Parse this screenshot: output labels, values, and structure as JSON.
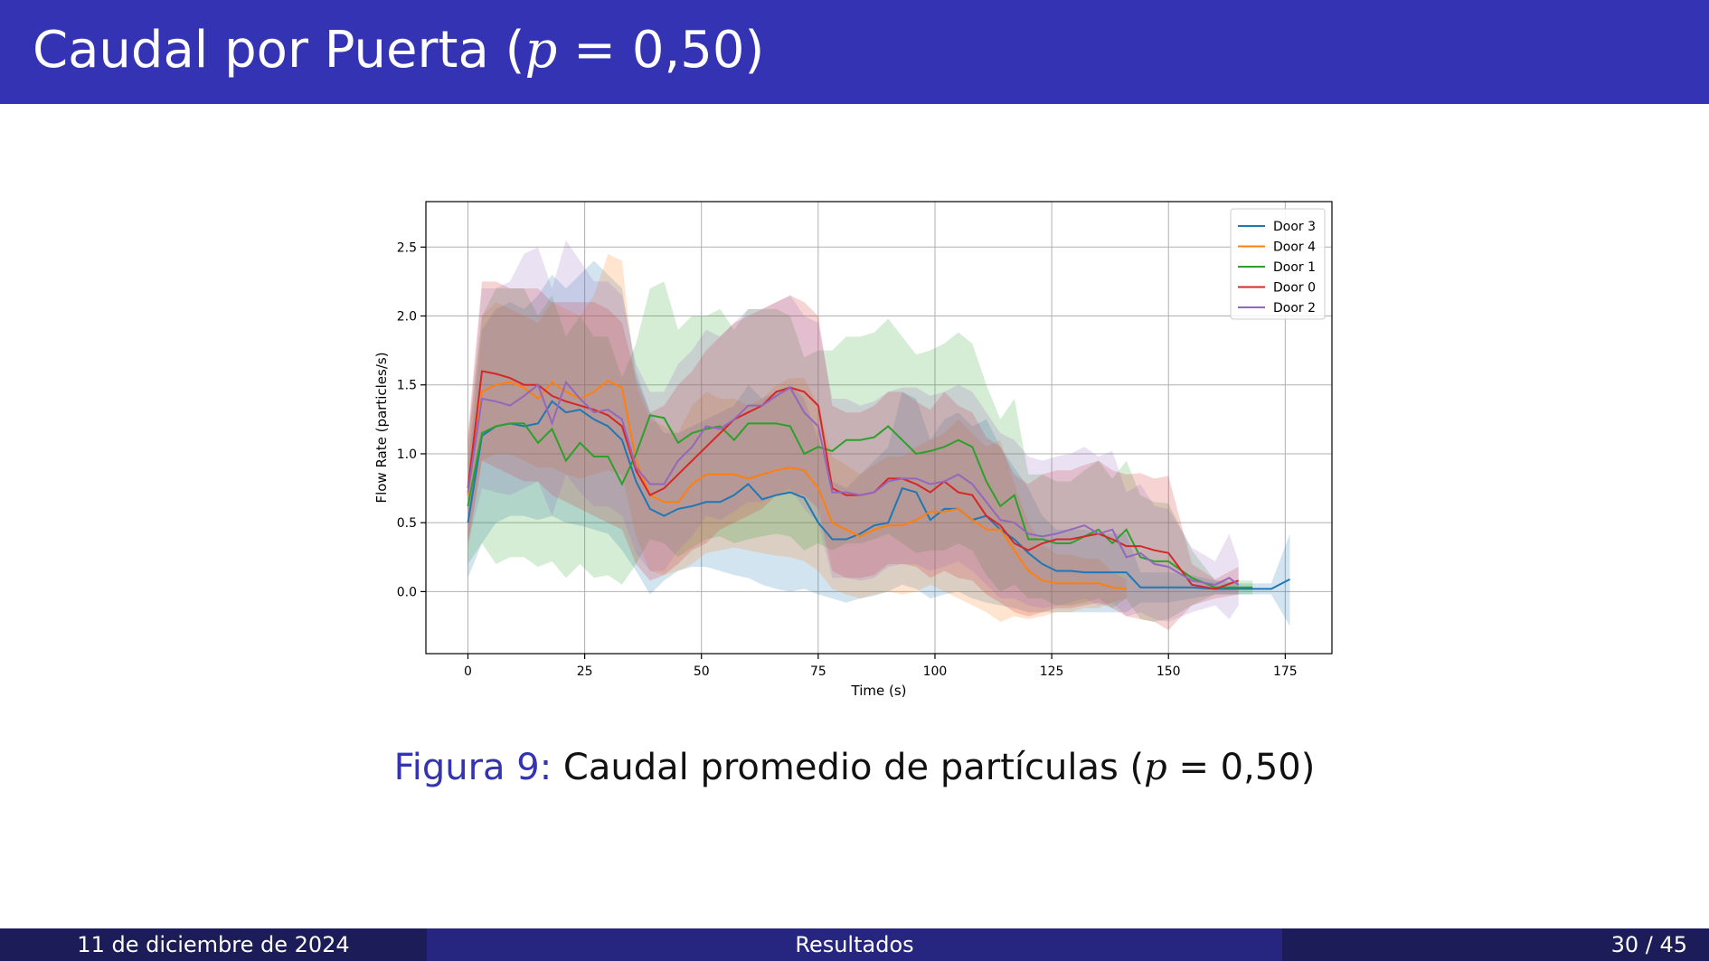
{
  "slide": {
    "title_text": "Caudal por Puerta (",
    "title_var": "p",
    "title_rest": " = 0,50)",
    "caption_label": "Figura 9:",
    "caption_text": " Caudal promedio de partículas (",
    "caption_var": "p",
    "caption_rest": " = 0,50)"
  },
  "footer": {
    "date": "11 de diciembre de 2024",
    "section": "Resultados",
    "page": "30 / 45"
  },
  "colors": {
    "header_bg": "#3333b3",
    "footer_dark": "#1c1c59",
    "footer_mid": "#262680"
  },
  "chart_data": {
    "type": "line",
    "title": "",
    "xlabel": "Time (s)",
    "ylabel": "Flow Rate (particles/s)",
    "xlim": [
      -9,
      185
    ],
    "ylim": [
      -0.45,
      2.83
    ],
    "xticks": [
      0,
      25,
      50,
      75,
      100,
      125,
      150,
      175
    ],
    "yticks": [
      0.0,
      0.5,
      1.0,
      1.5,
      2.0,
      2.5
    ],
    "xtick_labels": [
      "0",
      "25",
      "50",
      "75",
      "100",
      "125",
      "150",
      "175"
    ],
    "ytick_labels": [
      "0.0",
      "0.5",
      "1.0",
      "1.5",
      "2.0",
      "2.5"
    ],
    "grid": true,
    "legend_position": "top-right",
    "series": [
      {
        "name": "Door 3",
        "color": "#1f77b4",
        "x": [
          0,
          3,
          6,
          9,
          12,
          15,
          18,
          21,
          24,
          27,
          30,
          33,
          36,
          39,
          42,
          45,
          48,
          51,
          54,
          57,
          60,
          63,
          66,
          69,
          72,
          75,
          78,
          81,
          84,
          87,
          90,
          93,
          96,
          99,
          102,
          105,
          108,
          111,
          114,
          117,
          120,
          123,
          126,
          129,
          132,
          135,
          138,
          141,
          144,
          147,
          150,
          155,
          160,
          165,
          170,
          172,
          176
        ],
        "y": [
          0.5,
          1.13,
          1.2,
          1.22,
          1.2,
          1.22,
          1.38,
          1.3,
          1.32,
          1.25,
          1.2,
          1.1,
          0.8,
          0.6,
          0.55,
          0.6,
          0.62,
          0.65,
          0.65,
          0.7,
          0.78,
          0.67,
          0.7,
          0.72,
          0.68,
          0.5,
          0.38,
          0.38,
          0.42,
          0.48,
          0.5,
          0.75,
          0.72,
          0.52,
          0.6,
          0.6,
          0.52,
          0.55,
          0.45,
          0.38,
          0.28,
          0.2,
          0.15,
          0.15,
          0.14,
          0.14,
          0.14,
          0.14,
          0.03,
          0.03,
          0.03,
          0.03,
          0.02,
          0.02,
          0.02,
          0.02,
          0.09
        ],
        "lo": [
          0.1,
          0.35,
          0.5,
          0.55,
          0.55,
          0.52,
          0.55,
          0.5,
          0.48,
          0.45,
          0.42,
          0.3,
          0.15,
          -0.02,
          0.08,
          0.15,
          0.18,
          0.18,
          0.15,
          0.12,
          0.1,
          0.05,
          0.02,
          0.0,
          0.02,
          -0.02,
          -0.05,
          -0.08,
          -0.05,
          -0.03,
          0.0,
          0.05,
          0.02,
          -0.05,
          -0.02,
          0.0,
          -0.05,
          -0.08,
          -0.1,
          -0.12,
          -0.15,
          -0.15,
          -0.15,
          -0.15,
          -0.15,
          -0.15,
          -0.15,
          -0.15,
          -0.08,
          -0.08,
          -0.08,
          -0.05,
          -0.02,
          -0.02,
          -0.02,
          -0.02,
          -0.25
        ],
        "hi": [
          0.9,
          1.9,
          2.05,
          2.1,
          2.05,
          2.15,
          2.3,
          2.2,
          2.3,
          2.4,
          2.3,
          2.2,
          1.6,
          1.3,
          1.15,
          1.15,
          1.2,
          1.25,
          1.3,
          1.35,
          1.5,
          1.4,
          1.45,
          1.5,
          1.4,
          1.1,
          0.8,
          0.75,
          0.85,
          0.95,
          1.05,
          1.45,
          1.4,
          1.1,
          1.25,
          1.3,
          1.2,
          1.25,
          1.05,
          0.9,
          0.75,
          0.55,
          0.45,
          0.45,
          0.45,
          0.42,
          0.42,
          0.42,
          0.14,
          0.14,
          0.14,
          0.12,
          0.08,
          0.06,
          0.06,
          0.06,
          0.42
        ]
      },
      {
        "name": "Door 4",
        "color": "#ff7f0e",
        "x": [
          0,
          3,
          6,
          9,
          12,
          15,
          18,
          21,
          24,
          27,
          30,
          33,
          36,
          39,
          42,
          45,
          48,
          51,
          54,
          57,
          60,
          63,
          66,
          69,
          72,
          75,
          78,
          81,
          84,
          87,
          90,
          93,
          96,
          99,
          102,
          105,
          108,
          111,
          114,
          117,
          120,
          123,
          126,
          129,
          132,
          135,
          138,
          141
        ],
        "y": [
          0.7,
          1.45,
          1.5,
          1.52,
          1.48,
          1.4,
          1.52,
          1.45,
          1.4,
          1.45,
          1.53,
          1.48,
          0.95,
          0.7,
          0.65,
          0.65,
          0.78,
          0.85,
          0.85,
          0.85,
          0.82,
          0.85,
          0.88,
          0.9,
          0.88,
          0.75,
          0.5,
          0.45,
          0.4,
          0.45,
          0.48,
          0.48,
          0.52,
          0.58,
          0.58,
          0.6,
          0.52,
          0.45,
          0.45,
          0.3,
          0.15,
          0.08,
          0.06,
          0.06,
          0.06,
          0.06,
          0.03,
          0.02
        ],
        "lo": [
          0.3,
          0.95,
          1.0,
          1.0,
          0.95,
          0.9,
          0.9,
          0.85,
          0.82,
          0.85,
          0.88,
          0.85,
          0.4,
          0.15,
          0.12,
          0.15,
          0.2,
          0.28,
          0.3,
          0.32,
          0.3,
          0.28,
          0.26,
          0.25,
          0.22,
          0.15,
          0.02,
          -0.02,
          -0.05,
          -0.02,
          0.0,
          -0.02,
          0.0,
          0.05,
          0.0,
          -0.05,
          -0.1,
          -0.15,
          -0.22,
          -0.18,
          -0.2,
          -0.18,
          -0.15,
          -0.15,
          -0.12,
          -0.12,
          -0.08,
          -0.05
        ],
        "hi": [
          1.1,
          2.0,
          2.1,
          2.05,
          2.0,
          1.95,
          2.1,
          2.05,
          2.0,
          2.15,
          2.45,
          2.4,
          1.5,
          1.25,
          1.2,
          1.15,
          1.35,
          1.45,
          1.4,
          1.4,
          1.35,
          1.4,
          1.5,
          1.55,
          1.55,
          1.35,
          0.98,
          0.92,
          0.85,
          0.92,
          0.98,
          0.98,
          1.05,
          1.1,
          1.15,
          1.25,
          1.15,
          1.05,
          1.1,
          0.78,
          0.5,
          0.34,
          0.27,
          0.27,
          0.24,
          0.24,
          0.14,
          0.09
        ]
      },
      {
        "name": "Door 1",
        "color": "#2ca02c",
        "x": [
          0,
          3,
          6,
          9,
          12,
          15,
          18,
          21,
          24,
          27,
          30,
          33,
          36,
          39,
          42,
          45,
          48,
          51,
          54,
          57,
          60,
          63,
          66,
          69,
          72,
          75,
          78,
          81,
          84,
          87,
          90,
          93,
          96,
          99,
          102,
          105,
          108,
          111,
          114,
          117,
          120,
          123,
          126,
          129,
          132,
          135,
          138,
          141,
          144,
          147,
          150,
          155,
          160,
          165,
          168
        ],
        "y": [
          0.62,
          1.15,
          1.2,
          1.22,
          1.22,
          1.08,
          1.18,
          0.95,
          1.08,
          0.98,
          0.98,
          0.78,
          1.0,
          1.28,
          1.26,
          1.08,
          1.15,
          1.18,
          1.2,
          1.1,
          1.22,
          1.22,
          1.22,
          1.2,
          1.0,
          1.05,
          1.02,
          1.1,
          1.1,
          1.12,
          1.2,
          1.1,
          1.0,
          1.02,
          1.05,
          1.1,
          1.05,
          0.8,
          0.62,
          0.7,
          0.38,
          0.38,
          0.35,
          0.35,
          0.4,
          0.45,
          0.35,
          0.45,
          0.25,
          0.22,
          0.22,
          0.1,
          0.03,
          0.03,
          0.03
        ],
        "lo": [
          0.2,
          0.35,
          0.2,
          0.25,
          0.25,
          0.18,
          0.22,
          0.1,
          0.2,
          0.1,
          0.12,
          0.05,
          0.2,
          0.38,
          0.35,
          0.25,
          0.32,
          0.38,
          0.4,
          0.35,
          0.38,
          0.4,
          0.42,
          0.4,
          0.3,
          0.35,
          0.3,
          0.35,
          0.35,
          0.38,
          0.42,
          0.35,
          0.28,
          0.3,
          0.3,
          0.35,
          0.3,
          0.12,
          0.0,
          0.05,
          -0.05,
          -0.05,
          -0.1,
          -0.1,
          -0.08,
          -0.05,
          -0.12,
          -0.05,
          -0.2,
          -0.22,
          -0.2,
          -0.1,
          -0.02,
          -0.02,
          -0.02
        ],
        "hi": [
          1.05,
          2.0,
          2.2,
          2.2,
          2.2,
          2.0,
          2.15,
          1.85,
          2.0,
          1.85,
          1.85,
          1.55,
          1.8,
          2.2,
          2.25,
          1.9,
          2.0,
          2.0,
          2.05,
          1.9,
          2.05,
          2.05,
          2.05,
          2.0,
          1.7,
          1.75,
          1.75,
          1.85,
          1.85,
          1.88,
          1.98,
          1.85,
          1.72,
          1.75,
          1.8,
          1.88,
          1.8,
          1.5,
          1.25,
          1.4,
          0.85,
          0.85,
          0.8,
          0.8,
          0.88,
          0.95,
          0.82,
          0.95,
          0.7,
          0.65,
          0.64,
          0.3,
          0.08,
          0.08,
          0.08
        ]
      },
      {
        "name": "Door 0",
        "color": "#d62728",
        "x": [
          0,
          3,
          6,
          9,
          12,
          15,
          18,
          21,
          24,
          27,
          30,
          33,
          36,
          39,
          42,
          45,
          48,
          51,
          54,
          57,
          60,
          63,
          66,
          69,
          72,
          75,
          78,
          81,
          84,
          87,
          90,
          93,
          96,
          99,
          102,
          105,
          108,
          111,
          114,
          117,
          120,
          123,
          126,
          129,
          132,
          135,
          138,
          141,
          144,
          147,
          150,
          155,
          160,
          165
        ],
        "y": [
          0.75,
          1.6,
          1.58,
          1.55,
          1.5,
          1.5,
          1.42,
          1.38,
          1.35,
          1.32,
          1.28,
          1.2,
          0.88,
          0.7,
          0.75,
          0.85,
          0.95,
          1.05,
          1.15,
          1.25,
          1.3,
          1.35,
          1.45,
          1.48,
          1.45,
          1.35,
          0.75,
          0.7,
          0.7,
          0.72,
          0.82,
          0.82,
          0.78,
          0.72,
          0.8,
          0.72,
          0.7,
          0.55,
          0.48,
          0.35,
          0.3,
          0.35,
          0.38,
          0.38,
          0.4,
          0.42,
          0.38,
          0.33,
          0.33,
          0.3,
          0.28,
          0.05,
          0.02,
          0.08
        ],
        "lo": [
          0.35,
          0.95,
          0.9,
          0.85,
          0.8,
          0.8,
          0.7,
          0.65,
          0.6,
          0.55,
          0.5,
          0.45,
          0.2,
          0.08,
          0.12,
          0.2,
          0.3,
          0.35,
          0.45,
          0.5,
          0.55,
          0.6,
          0.7,
          0.72,
          0.7,
          0.6,
          0.15,
          0.1,
          0.1,
          0.12,
          0.2,
          0.2,
          0.18,
          0.1,
          0.15,
          0.1,
          0.08,
          -0.02,
          -0.08,
          -0.15,
          -0.18,
          -0.15,
          -0.12,
          -0.12,
          -0.1,
          -0.08,
          -0.12,
          -0.18,
          -0.2,
          -0.22,
          -0.28,
          -0.1,
          -0.05,
          -0.02
        ],
        "hi": [
          1.15,
          2.25,
          2.25,
          2.2,
          2.2,
          2.2,
          2.1,
          2.1,
          2.1,
          2.1,
          2.05,
          1.95,
          1.55,
          1.3,
          1.35,
          1.5,
          1.6,
          1.75,
          1.85,
          1.95,
          2.0,
          2.05,
          2.1,
          2.15,
          2.1,
          2.0,
          1.35,
          1.3,
          1.3,
          1.35,
          1.45,
          1.45,
          1.38,
          1.32,
          1.45,
          1.35,
          1.3,
          1.12,
          1.05,
          0.85,
          0.78,
          0.85,
          0.88,
          0.88,
          0.92,
          0.95,
          0.88,
          0.85,
          0.86,
          0.82,
          0.84,
          0.2,
          0.09,
          0.18
        ]
      },
      {
        "name": "Door 2",
        "color": "#9467bd",
        "x": [
          0,
          3,
          6,
          9,
          12,
          15,
          18,
          21,
          24,
          27,
          30,
          33,
          36,
          39,
          42,
          45,
          48,
          51,
          54,
          57,
          60,
          63,
          66,
          69,
          72,
          75,
          78,
          81,
          84,
          87,
          90,
          93,
          96,
          99,
          102,
          105,
          108,
          111,
          114,
          117,
          120,
          123,
          126,
          129,
          132,
          135,
          138,
          141,
          144,
          147,
          150,
          155,
          160,
          163,
          165
        ],
        "y": [
          0.72,
          1.4,
          1.38,
          1.35,
          1.42,
          1.5,
          1.22,
          1.52,
          1.4,
          1.3,
          1.32,
          1.25,
          0.9,
          0.78,
          0.78,
          0.95,
          1.05,
          1.2,
          1.18,
          1.25,
          1.35,
          1.35,
          1.42,
          1.48,
          1.3,
          1.2,
          0.72,
          0.72,
          0.7,
          0.72,
          0.8,
          0.82,
          0.82,
          0.78,
          0.8,
          0.85,
          0.78,
          0.65,
          0.52,
          0.5,
          0.42,
          0.4,
          0.42,
          0.45,
          0.48,
          0.42,
          0.45,
          0.25,
          0.28,
          0.2,
          0.18,
          0.08,
          0.05,
          0.1,
          0.05
        ],
        "lo": [
          0.35,
          0.75,
          0.72,
          0.7,
          0.75,
          0.8,
          0.55,
          0.85,
          0.72,
          0.62,
          0.62,
          0.55,
          0.28,
          0.15,
          0.15,
          0.3,
          0.4,
          0.55,
          0.52,
          0.58,
          0.65,
          0.65,
          0.7,
          0.75,
          0.6,
          0.5,
          0.1,
          0.1,
          0.08,
          0.1,
          0.18,
          0.2,
          0.2,
          0.15,
          0.18,
          0.22,
          0.15,
          0.05,
          -0.05,
          -0.05,
          -0.1,
          -0.12,
          -0.1,
          -0.08,
          -0.05,
          -0.1,
          -0.08,
          -0.18,
          -0.15,
          -0.2,
          -0.22,
          -0.15,
          -0.1,
          -0.2,
          -0.1
        ],
        "hi": [
          1.1,
          2.2,
          2.2,
          2.25,
          2.45,
          2.5,
          2.2,
          2.55,
          2.4,
          2.25,
          2.25,
          2.15,
          1.65,
          1.45,
          1.45,
          1.65,
          1.75,
          1.9,
          1.85,
          1.95,
          2.05,
          2.05,
          2.1,
          2.15,
          2.0,
          1.95,
          1.4,
          1.4,
          1.35,
          1.38,
          1.45,
          1.48,
          1.48,
          1.42,
          1.45,
          1.5,
          1.45,
          1.3,
          1.15,
          1.1,
          0.98,
          0.95,
          0.98,
          1.0,
          1.05,
          0.98,
          1.02,
          0.72,
          0.78,
          0.62,
          0.6,
          0.32,
          0.22,
          0.42,
          0.22
        ]
      }
    ]
  }
}
